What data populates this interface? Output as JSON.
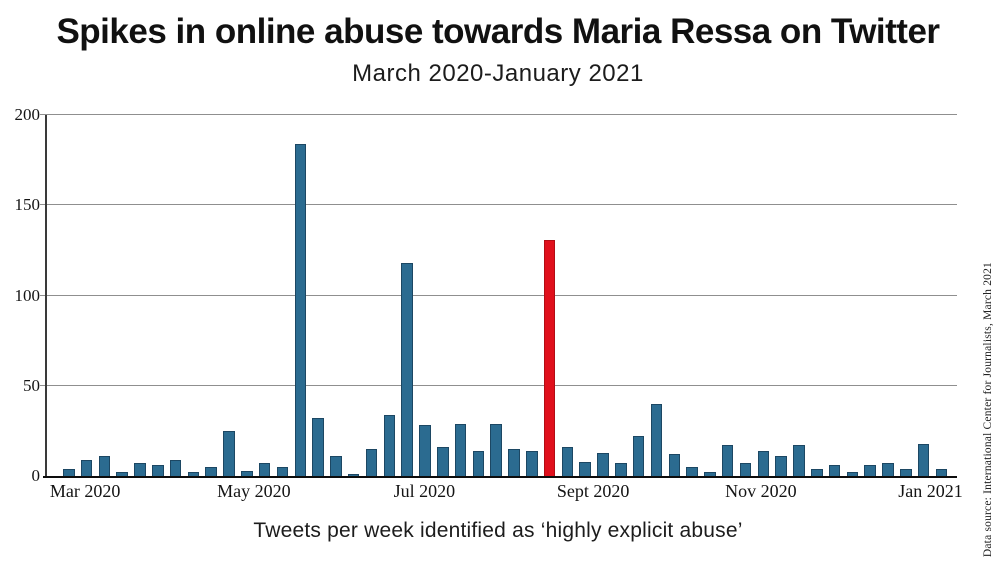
{
  "header": {
    "title": "Spikes in online abuse towards Maria Ressa on Twitter",
    "subtitle": "March 2020-January 2021"
  },
  "footer": {
    "caption": "Tweets per week identified as ‘highly explicit abuse’",
    "source": "Data source: International Center for Journalists, March 2021"
  },
  "chart_data": {
    "type": "bar",
    "title": "Spikes in online abuse towards Maria Ressa on Twitter",
    "subtitle": "March 2020-January 2021",
    "xlabel": "Tweets per week identified as ‘highly explicit abuse’",
    "ylabel": "",
    "ylim": [
      0,
      200
    ],
    "y_ticks": [
      0,
      50,
      100,
      150,
      200
    ],
    "grid": true,
    "legend": "none",
    "x_tick_labels": [
      "Mar 2020",
      "May 2020",
      "Jul 2020",
      "Sept 2020",
      "Nov 2020",
      "Jan 2021"
    ],
    "x_tick_positions_pct": [
      4.4,
      22.9,
      41.6,
      60.1,
      78.5,
      97.1
    ],
    "values": [
      4,
      9,
      11,
      2,
      7,
      6,
      9,
      2,
      5,
      25,
      3,
      7,
      5,
      184,
      32,
      11,
      1,
      15,
      34,
      118,
      28,
      16,
      29,
      14,
      29,
      15,
      14,
      131,
      16,
      8,
      13,
      7,
      22,
      40,
      12,
      5,
      2,
      17,
      7,
      14,
      11,
      17,
      4,
      6,
      2,
      6,
      7,
      4,
      18,
      4
    ],
    "highlight_index": 27,
    "bar_color": "#2b6b90",
    "highlight_color": "#e0101c",
    "gridline_color": "#8f8f8f"
  }
}
